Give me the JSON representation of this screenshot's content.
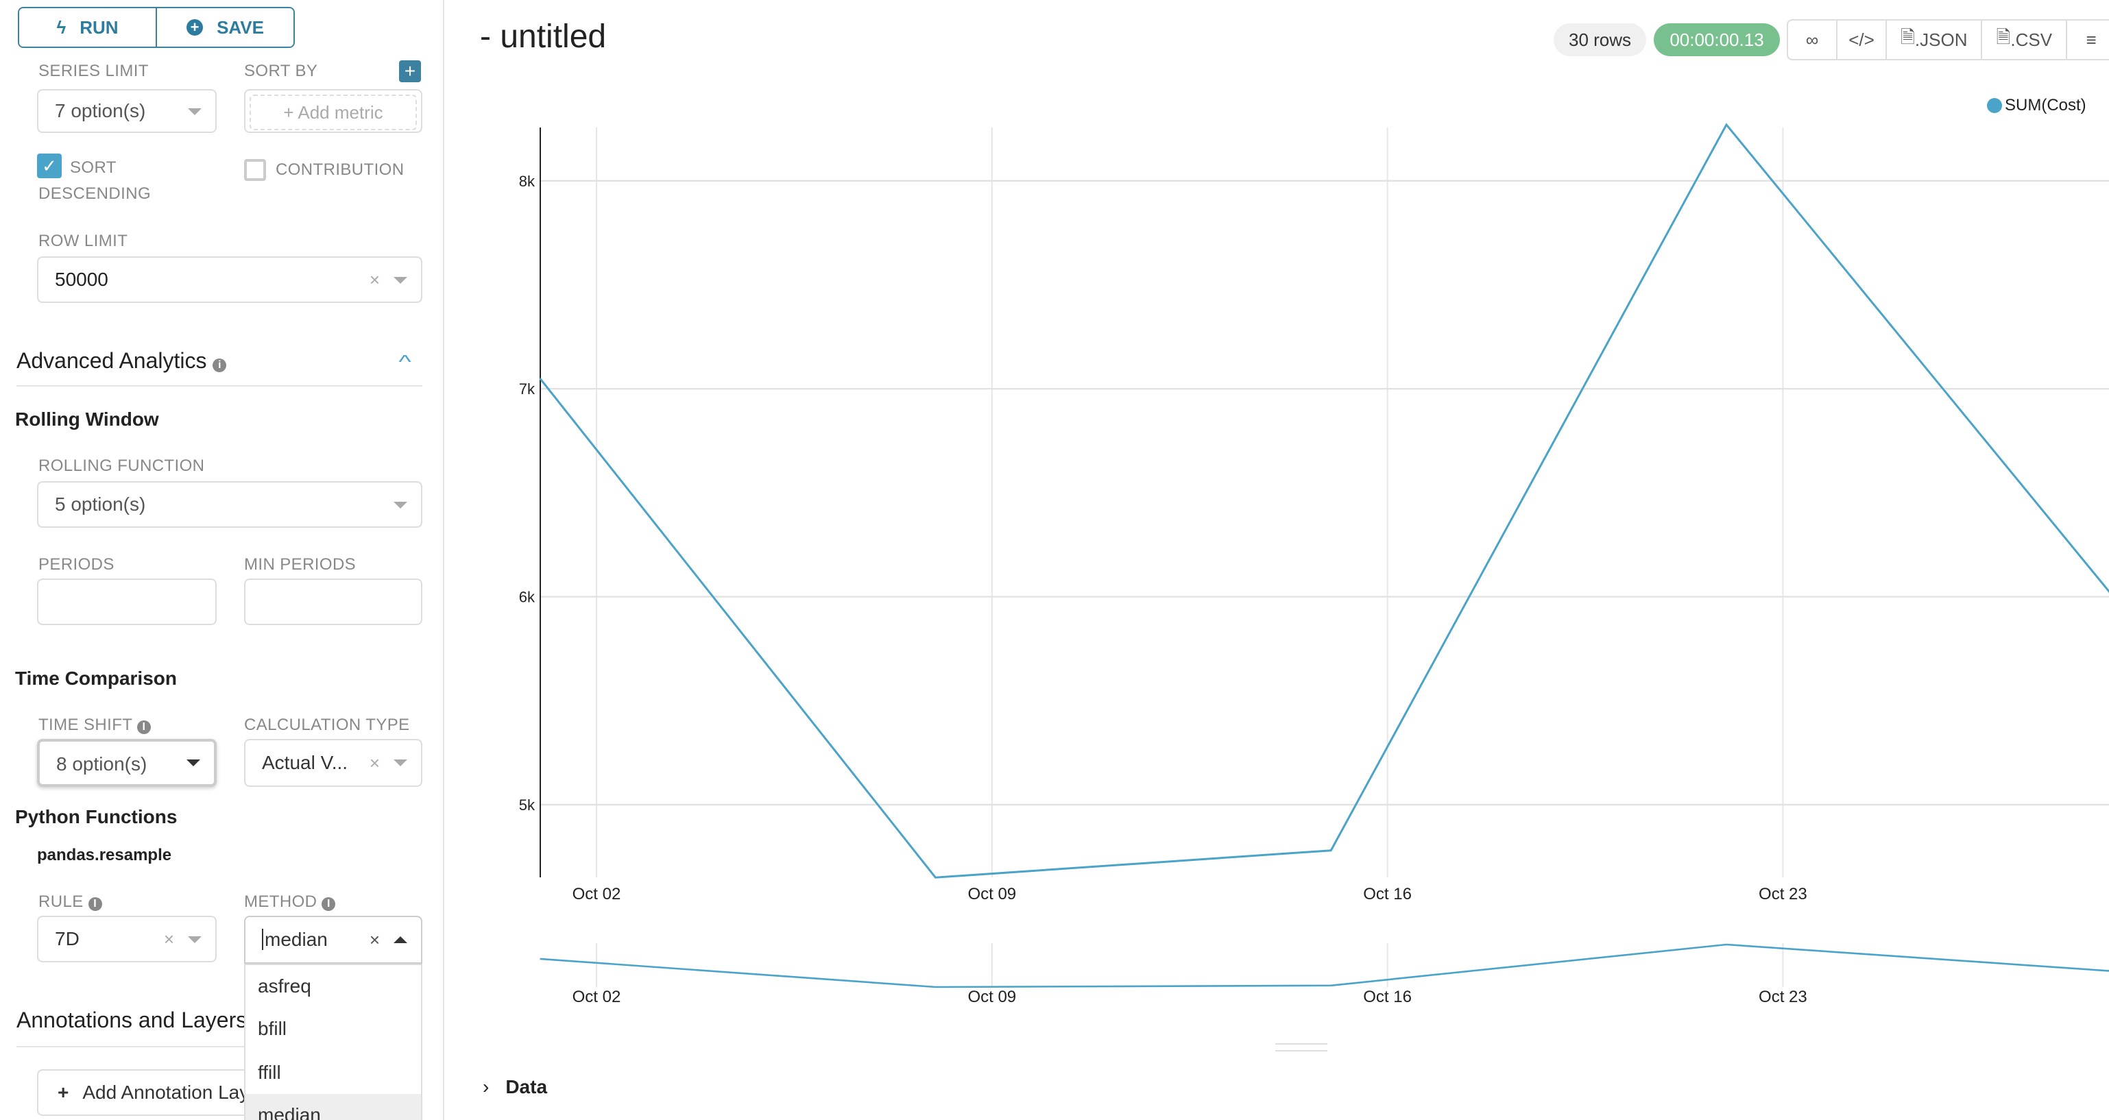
{
  "toolbar": {
    "run_label": "RUN",
    "save_label": "SAVE"
  },
  "query": {
    "series_limit_label": "SERIES LIMIT",
    "series_limit_value": "7 option(s)",
    "sort_by_label": "SORT BY",
    "add_metric_placeholder": "Add metric",
    "sort_descending_label": "SORT DESCENDING",
    "sort_descending_checked": true,
    "contribution_label": "CONTRIBUTION",
    "contribution_checked": false,
    "row_limit_label": "ROW LIMIT",
    "row_limit_value": "50000"
  },
  "advanced": {
    "title": "Advanced Analytics",
    "rolling_window": "Rolling Window",
    "rolling_function_label": "ROLLING FUNCTION",
    "rolling_function_value": "5 option(s)",
    "periods_label": "PERIODS",
    "min_periods_label": "MIN PERIODS",
    "time_comparison": "Time Comparison",
    "time_shift_label": "TIME SHIFT",
    "time_shift_value": "8 option(s)",
    "calc_type_label": "CALCULATION TYPE",
    "calc_type_value": "Actual V...",
    "python_functions": "Python Functions",
    "resample": "pandas.resample",
    "rule_label": "RULE",
    "rule_value": "7D",
    "method_label": "METHOD",
    "method_value": "median",
    "method_options": [
      "asfreq",
      "bfill",
      "ffill",
      "median"
    ]
  },
  "annotations": {
    "title": "Annotations and Layers",
    "add_button": "Add Annotation Layer"
  },
  "header": {
    "title": "- untitled",
    "rows_badge": "30 rows",
    "timer": "00:00:00.13",
    "json_label": ".JSON",
    "csv_label": ".CSV",
    "icons": [
      "link-icon",
      "code-icon",
      "file-code-icon",
      "file-text-icon",
      "hamburger-menu-icon"
    ]
  },
  "data_section": {
    "label": "Data"
  },
  "colors": {
    "accent": "#2c7ca0",
    "series": "#4aa3c8",
    "timer": "#78c08d"
  },
  "chart_data": {
    "type": "line",
    "x": [
      "Oct 01",
      "Oct 08",
      "Oct 15",
      "Oct 22",
      "Oct 29"
    ],
    "series": [
      {
        "name": "SUM(Cost)",
        "values": [
          7050,
          4650,
          4780,
          8270,
          5950
        ]
      }
    ],
    "x_ticks": [
      "Oct 02",
      "Oct 09",
      "Oct 16",
      "Oct 23"
    ],
    "y_ticks": [
      "5k",
      "6k",
      "7k",
      "8k"
    ],
    "ylim": [
      4650,
      8270
    ],
    "grid": true,
    "legend": "top-right",
    "has_brush_overview": true
  }
}
